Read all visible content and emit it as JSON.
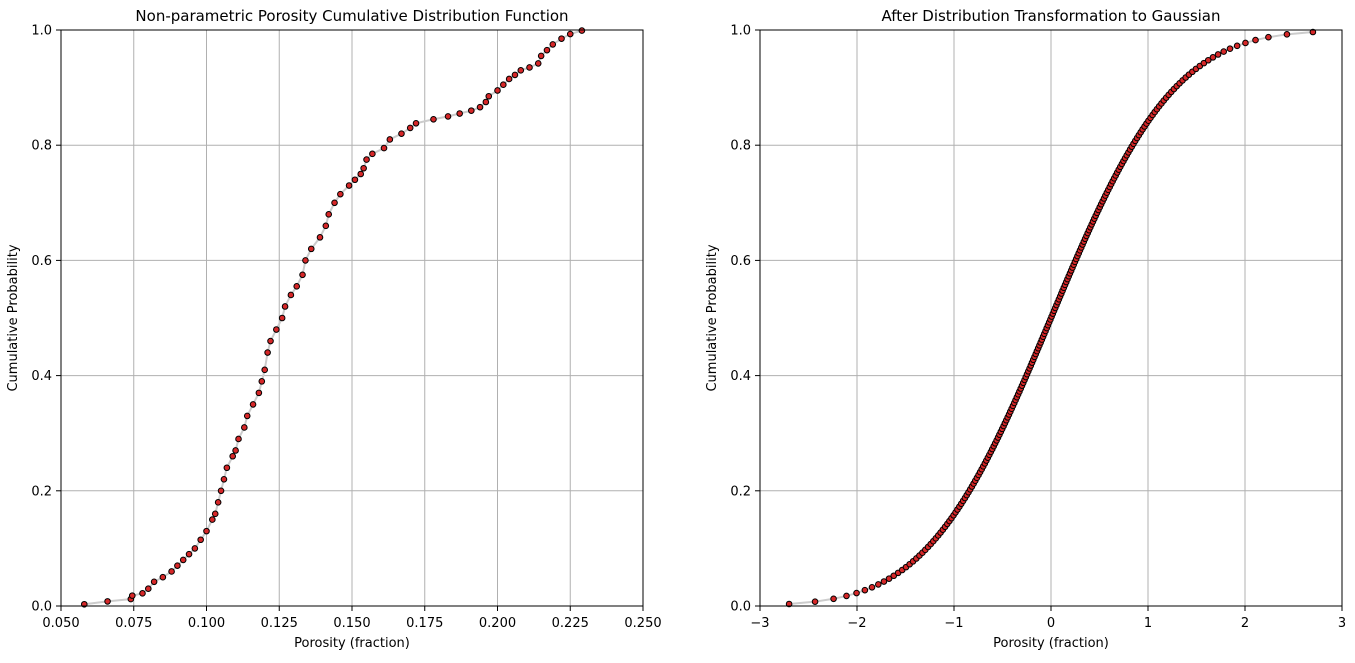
{
  "chart_data": [
    {
      "type": "scatter",
      "title": "Non-parametric Porosity Cumulative Distribution Function",
      "xlabel": "Porosity (fraction)",
      "ylabel": "Cumulative Probability",
      "xlim": [
        0.05,
        0.25
      ],
      "ylim": [
        0.0,
        1.0
      ],
      "xticks": [
        "0.050",
        "0.075",
        "0.100",
        "0.125",
        "0.150",
        "0.175",
        "0.200",
        "0.225",
        "0.250"
      ],
      "yticks": [
        "0.0",
        "0.2",
        "0.4",
        "0.6",
        "0.8",
        "1.0"
      ],
      "grid": true,
      "marker_color": "#d62728",
      "edge_color": "#000000",
      "line_color": "#cccccc",
      "cdf_points": [
        [
          0.058,
          0.003
        ],
        [
          0.066,
          0.008
        ],
        [
          0.074,
          0.012
        ],
        [
          0.0745,
          0.018
        ],
        [
          0.078,
          0.022
        ],
        [
          0.08,
          0.03
        ],
        [
          0.082,
          0.042
        ],
        [
          0.085,
          0.05
        ],
        [
          0.088,
          0.06
        ],
        [
          0.09,
          0.07
        ],
        [
          0.092,
          0.08
        ],
        [
          0.094,
          0.09
        ],
        [
          0.096,
          0.1
        ],
        [
          0.098,
          0.115
        ],
        [
          0.1,
          0.13
        ],
        [
          0.102,
          0.15
        ],
        [
          0.103,
          0.16
        ],
        [
          0.104,
          0.18
        ],
        [
          0.105,
          0.2
        ],
        [
          0.106,
          0.22
        ],
        [
          0.107,
          0.24
        ],
        [
          0.109,
          0.26
        ],
        [
          0.11,
          0.27
        ],
        [
          0.111,
          0.29
        ],
        [
          0.113,
          0.31
        ],
        [
          0.114,
          0.33
        ],
        [
          0.116,
          0.35
        ],
        [
          0.118,
          0.37
        ],
        [
          0.119,
          0.39
        ],
        [
          0.12,
          0.41
        ],
        [
          0.121,
          0.44
        ],
        [
          0.122,
          0.46
        ],
        [
          0.124,
          0.48
        ],
        [
          0.126,
          0.5
        ],
        [
          0.127,
          0.52
        ],
        [
          0.129,
          0.54
        ],
        [
          0.131,
          0.555
        ],
        [
          0.133,
          0.575
        ],
        [
          0.134,
          0.6
        ],
        [
          0.136,
          0.62
        ],
        [
          0.139,
          0.64
        ],
        [
          0.141,
          0.66
        ],
        [
          0.142,
          0.68
        ],
        [
          0.144,
          0.7
        ],
        [
          0.146,
          0.715
        ],
        [
          0.149,
          0.73
        ],
        [
          0.151,
          0.74
        ],
        [
          0.153,
          0.75
        ],
        [
          0.154,
          0.76
        ],
        [
          0.155,
          0.775
        ],
        [
          0.157,
          0.785
        ],
        [
          0.161,
          0.795
        ],
        [
          0.163,
          0.81
        ],
        [
          0.167,
          0.82
        ],
        [
          0.17,
          0.83
        ],
        [
          0.172,
          0.838
        ],
        [
          0.178,
          0.845
        ],
        [
          0.183,
          0.85
        ],
        [
          0.187,
          0.855
        ],
        [
          0.191,
          0.86
        ],
        [
          0.194,
          0.866
        ],
        [
          0.196,
          0.875
        ],
        [
          0.197,
          0.885
        ],
        [
          0.2,
          0.895
        ],
        [
          0.202,
          0.905
        ],
        [
          0.204,
          0.915
        ],
        [
          0.206,
          0.922
        ],
        [
          0.208,
          0.93
        ],
        [
          0.211,
          0.935
        ],
        [
          0.214,
          0.942
        ],
        [
          0.215,
          0.955
        ],
        [
          0.217,
          0.965
        ],
        [
          0.219,
          0.975
        ],
        [
          0.222,
          0.985
        ],
        [
          0.225,
          0.993
        ],
        [
          0.229,
          0.999
        ]
      ]
    },
    {
      "type": "scatter",
      "title": "After Distribution Transformation to Gaussian",
      "xlabel": "Porosity (fraction)",
      "ylabel": "Cumulative Probability",
      "xlim": [
        -3,
        3
      ],
      "ylim": [
        0.0,
        1.0
      ],
      "xticks": [
        "−3",
        "−2",
        "−1",
        "0",
        "1",
        "2",
        "3"
      ],
      "yticks": [
        "0.0",
        "0.2",
        "0.4",
        "0.6",
        "0.8",
        "1.0"
      ],
      "grid": true,
      "marker_color": "#d62728",
      "edge_color": "#000000",
      "line_color": "#cccccc",
      "distribution": "standard normal CDF",
      "x_range": [
        -2.7,
        2.7
      ],
      "point_count": 200
    }
  ]
}
